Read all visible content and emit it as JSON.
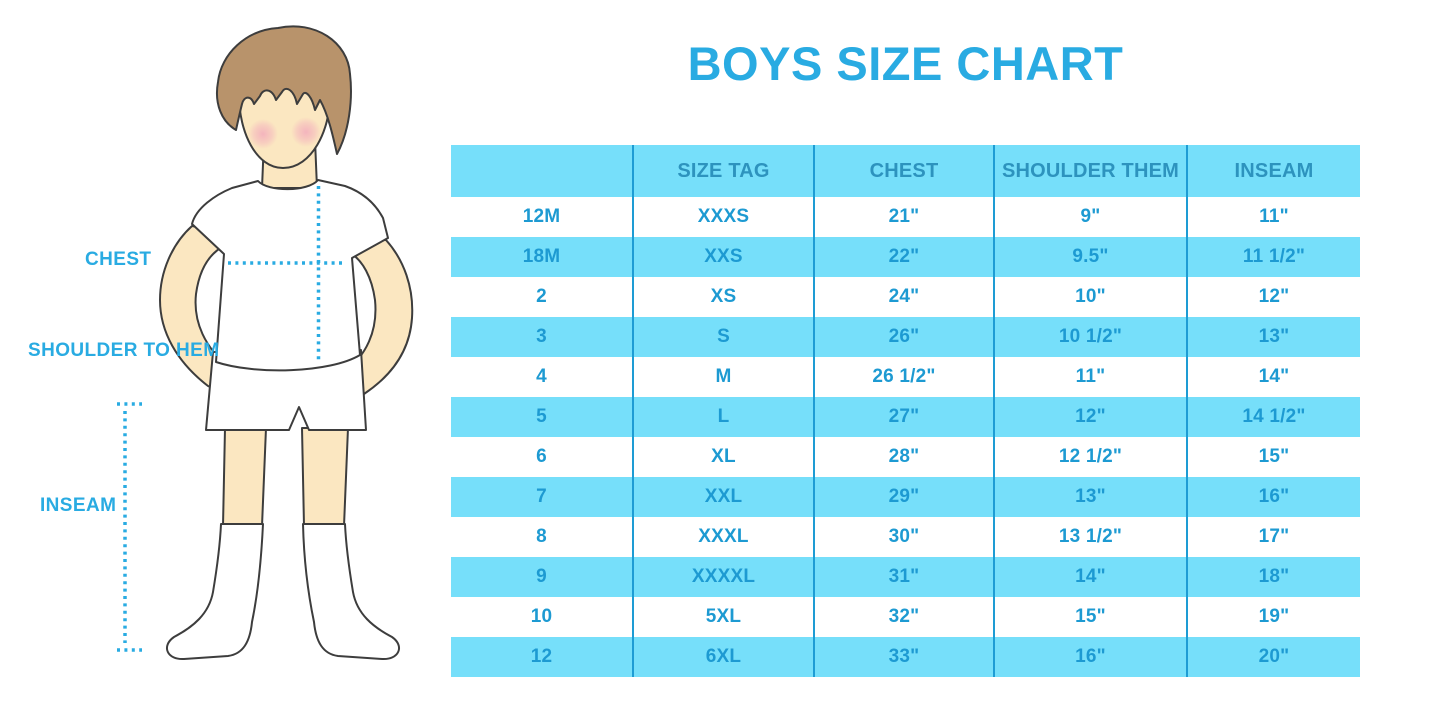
{
  "header": {
    "title": "BOYS SIZE CHART"
  },
  "figure": {
    "labels": {
      "chest": "CHEST",
      "shoulder_to_hem": "SHOULDER TO HEM",
      "inseam": "INSEAM"
    }
  },
  "chart_data": {
    "type": "table",
    "title": "BOYS SIZE CHART",
    "columns": [
      "",
      "SIZE TAG",
      "CHEST",
      "SHOULDER THEM",
      "INSEAM"
    ],
    "rows": [
      [
        "12M",
        "XXXS",
        "21\"",
        "9\"",
        "11\""
      ],
      [
        "18M",
        "XXS",
        "22\"",
        "9.5\"",
        "11 1/2\""
      ],
      [
        "2",
        "XS",
        "24\"",
        "10\"",
        "12\""
      ],
      [
        "3",
        "S",
        "26\"",
        "10 1/2\"",
        "13\""
      ],
      [
        "4",
        "M",
        "26 1/2\"",
        "11\"",
        "14\""
      ],
      [
        "5",
        "L",
        "27\"",
        "12\"",
        "14 1/2\""
      ],
      [
        "6",
        "XL",
        "28\"",
        "12 1/2\"",
        "15\""
      ],
      [
        "7",
        "XXL",
        "29\"",
        "13\"",
        "16\""
      ],
      [
        "8",
        "XXXL",
        "30\"",
        "13 1/2\"",
        "17\""
      ],
      [
        "9",
        "XXXXL",
        "31\"",
        "14\"",
        "18\""
      ],
      [
        "10",
        "5XL",
        "32\"",
        "15\"",
        "19\""
      ],
      [
        "12",
        "6XL",
        "33\"",
        "16\"",
        "20\""
      ]
    ],
    "layout": {
      "striped": true,
      "stripe_pattern": "header and every second data row highlighted"
    }
  },
  "colors": {
    "accent": "#29ABE2",
    "stripe": "#76DFFA",
    "divider": "#1E9CD4",
    "cellText": "#1D9AD2",
    "headerText": "#2D93BE",
    "skin": "#FBE7C1",
    "hair": "#B8936B",
    "outline": "#3D3D3D",
    "blush": "#F2A8BC"
  }
}
